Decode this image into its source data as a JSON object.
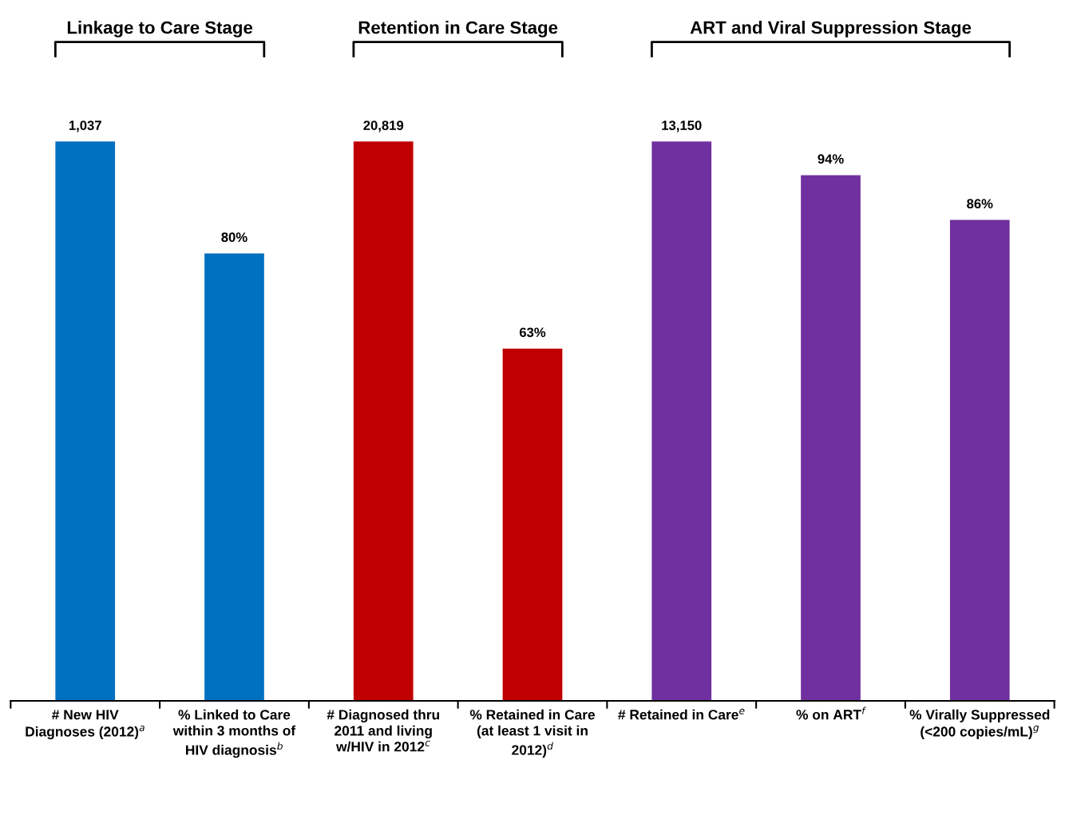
{
  "chart_data": {
    "type": "other",
    "categories": [
      "# New HIV\nDiagnoses (2012)$^{a}$",
      "% Linked to Care\nwithin 3 months of\nHIV diagnosis$^{b}$",
      "# Diagnosed thru\n2011 and living\nw/HIV in 2012$^{c}$",
      "% Retained in Care\n(at least 1 visit in\n2012)$^{d}$",
      "# Retained in Care$^{e}$",
      "% on ART$^{f}$",
      "% Virally Suppressed\n(<200 copies/mL)$^{g}$"
    ],
    "values": [
      1037,
      80,
      20819,
      63,
      13150,
      94,
      86
    ],
    "colors": [
      "#0070c0",
      "#0070c0",
      "#c00000",
      "#c00000",
      "#7030a0",
      "#7030a0",
      "#7030a0"
    ],
    "value_labels": [
      "1,037",
      "80%",
      "20,819",
      "63%",
      "13,150",
      "94%",
      "86%"
    ],
    "annotations": [
      "Linkage to Care Stage",
      "Retention in Care Stage",
      "ART and Viral Suppression Stage"
    ],
    "legend": false
  }
}
